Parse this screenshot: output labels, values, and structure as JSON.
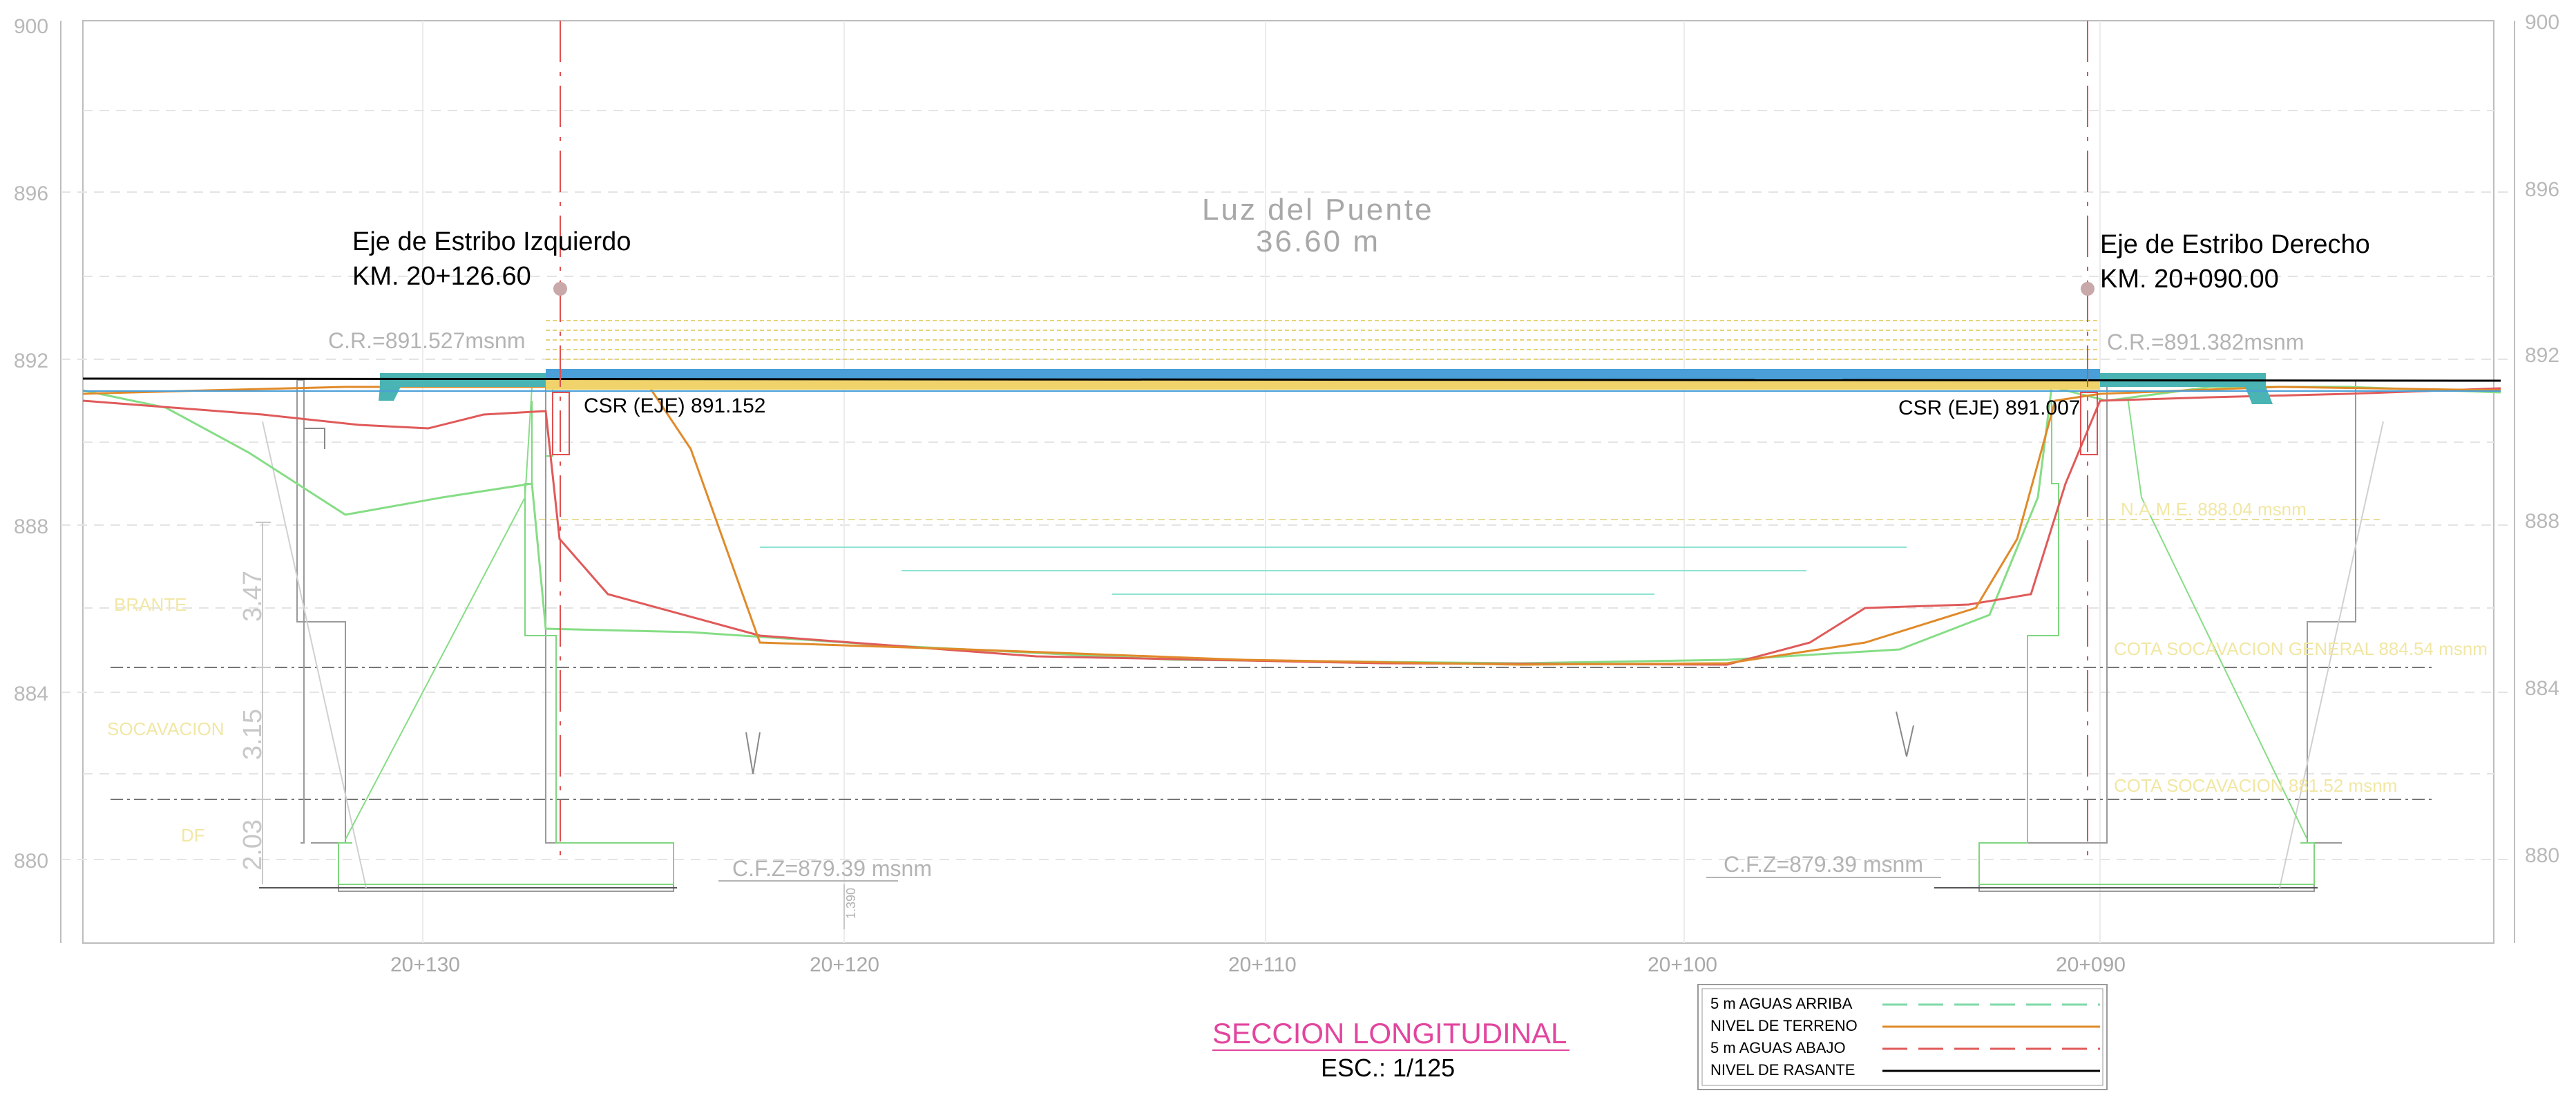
{
  "y_axis": {
    "left_labels": [
      "900",
      "896",
      "892",
      "888",
      "884",
      "880"
    ],
    "right_labels": [
      "900",
      "896",
      "892",
      "888",
      "884",
      "880"
    ]
  },
  "x_axis": {
    "labels": [
      "20+130",
      "20+120",
      "20+110",
      "20+100",
      "20+090"
    ]
  },
  "bridge": {
    "span_title": "Luz del Puente",
    "span_length": "36.60 m"
  },
  "left_abutment": {
    "title": "Eje de Estribo Izquierdo",
    "km": "KM. 20+126.60",
    "cr": "C.R.=891.527msnm",
    "csr": "CSR (EJE) 891.152",
    "cfz": "C.F.Z=879.39 msnm"
  },
  "right_abutment": {
    "title": "Eje de Estribo Derecho",
    "km": "KM. 20+090.00",
    "cr": "C.R.=891.382msnm",
    "csr": "CSR (EJE) 891.007",
    "cfz": "C.F.Z=879.39 msnm"
  },
  "dimensions": {
    "d1": "3.47",
    "d2": "3.15",
    "d3": "2.03",
    "small": "1.390"
  },
  "faint_labels": {
    "left_1": "BRANTE",
    "left_2": "SOCAVACION",
    "left_3": "DF",
    "right_1": "N.A.M.E. 888.04 msnm",
    "right_2": "COTA SOCAVACION GENERAL 884.54 msnm",
    "right_3": "COTA SOCAVACION 881.52 msnm"
  },
  "title": {
    "main": "SECCION LONGITUDINAL",
    "scale": "ESC.: 1/125"
  },
  "legend": {
    "items": [
      {
        "label": "5 m AGUAS ARRIBA",
        "color": "#7ed9a8",
        "style": "dashed"
      },
      {
        "label": "NIVEL DE TERRENO",
        "color": "#e08a2a",
        "style": "solid"
      },
      {
        "label": "5 m AGUAS ABAJO",
        "color": "#e05a5a",
        "style": "dashed"
      },
      {
        "label": "NIVEL DE RASANTE",
        "color": "#000000",
        "style": "solid"
      }
    ]
  },
  "colors": {
    "deck": "#4a9fd8",
    "terrain": "#e08a2a",
    "downstream": "#e05a5a",
    "upstream": "#86dd86",
    "axis_line": "#e05050",
    "structure": "#8a8a8a"
  }
}
